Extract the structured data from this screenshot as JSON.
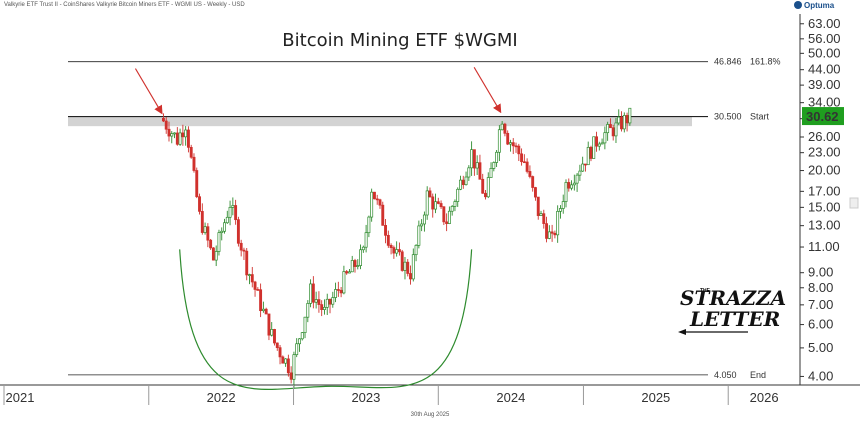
{
  "header": {
    "source_line": "Valkyrie ETF Trust II - CoinShares Valkyrie Bitcoin Miners ETF - WGMI US - Weekly - USD",
    "brand": "Optuma",
    "date_footer": "30th Aug 2025"
  },
  "logo": {
    "line1_small": "THE",
    "line1": "STRAZZA",
    "line2": "LETTER"
  },
  "colors": {
    "up": "#2e8b2e",
    "down": "#d0312d",
    "arrow": "#d0312d",
    "arc": "#2e8b2e",
    "band": "#d3d3d3",
    "last_price_bg": "#1f9e1f"
  },
  "chart_data": {
    "type": "candlestick",
    "title": "Bitcoin Mining ETF $WGMI",
    "scale": "log",
    "ylim": [
      3.8,
      68
    ],
    "y_ticks": [
      "63.00",
      "56.00",
      "50.00",
      "44.00",
      "39.00",
      "34.00",
      "30.00",
      "26.00",
      "23.00",
      "20.00",
      "17.00",
      "15.00",
      "13.00",
      "11.00",
      "9.00",
      "8.00",
      "7.00",
      "6.00",
      "5.00",
      "4.00"
    ],
    "x_ticks": [
      "2021",
      "2022",
      "2023",
      "2024",
      "2025",
      "2026"
    ],
    "last_price": "30.62",
    "levels": [
      {
        "value": 46.846,
        "value_label": "46.846",
        "tag": "161.8%"
      },
      {
        "value": 30.5,
        "value_label": "30.500",
        "tag": "Start"
      },
      {
        "value": 4.05,
        "value_label": "4.050",
        "tag": "End"
      }
    ],
    "resistance_band": [
      28.3,
      30.5
    ],
    "annotations": [
      "red arrow at Feb 2022 high",
      "red arrow at Jun 2024 high",
      "green cup arc 2022-2023 base"
    ],
    "anchors": [
      [
        "2022-02-07",
        29.5
      ],
      [
        "2022-03-14",
        25.5
      ],
      [
        "2022-04-04",
        29.0
      ],
      [
        "2022-05-09",
        14.0
      ],
      [
        "2022-06-13",
        10.0
      ],
      [
        "2022-07-25",
        15.5
      ],
      [
        "2022-09-05",
        9.5
      ],
      [
        "2022-11-14",
        5.2
      ],
      [
        "2022-12-26",
        4.2
      ],
      [
        "2023-02-13",
        7.8
      ],
      [
        "2023-03-20",
        6.6
      ],
      [
        "2023-05-08",
        8.5
      ],
      [
        "2023-06-26",
        10.5
      ],
      [
        "2023-07-17",
        17.5
      ],
      [
        "2023-09-11",
        10.5
      ],
      [
        "2023-10-23",
        9.0
      ],
      [
        "2023-12-04",
        16.5
      ],
      [
        "2024-01-22",
        13.5
      ],
      [
        "2024-03-25",
        23.0
      ],
      [
        "2024-04-29",
        16.0
      ],
      [
        "2024-06-10",
        30.5
      ],
      [
        "2024-06-24",
        26.0
      ],
      [
        "2024-08-05",
        21.5
      ],
      [
        "2024-09-09",
        14.5
      ],
      [
        "2024-10-14",
        11.5
      ],
      [
        "2024-11-18",
        18.0
      ],
      [
        "2024-12-16",
        20.0
      ],
      [
        "2025-02-10",
        26.0
      ],
      [
        "2025-03-24",
        28.0
      ],
      [
        "2025-04-28",
        30.62
      ]
    ]
  }
}
